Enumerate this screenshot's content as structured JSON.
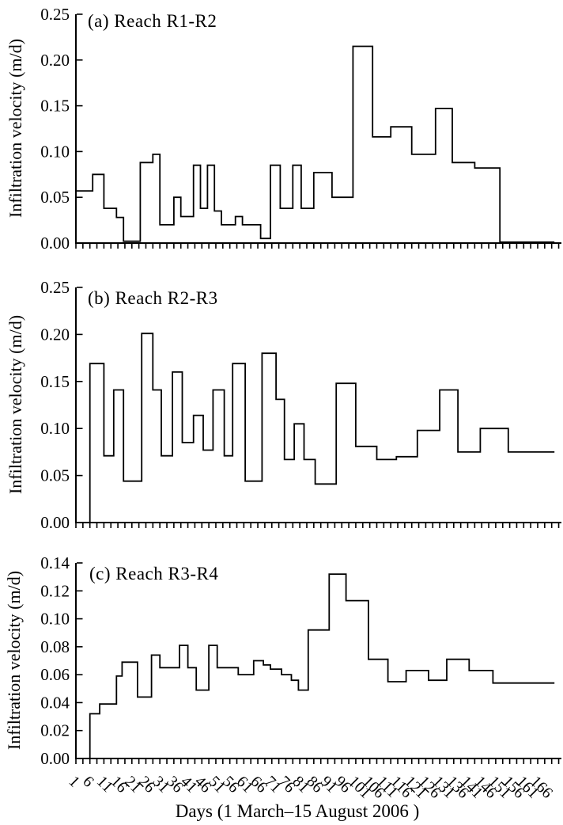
{
  "figure": {
    "background_color": "#ffffff",
    "line_color": "#000000",
    "text_color": "#000000"
  },
  "x_axis": {
    "label": "Days (1 March–15 August 2006 )",
    "tick_label_start": 1,
    "tick_label_step": 5,
    "tick_label_end": 166,
    "minor_tick_step": 2.5,
    "domain": [
      1,
      172
    ]
  },
  "chart_data": [
    {
      "type": "line",
      "line_style": "step",
      "grid": false,
      "legend": "none",
      "title": "(a) Reach R1-R2",
      "ylabel": "Infiltration velocity (m/d)",
      "ylim": [
        0,
        0.25
      ],
      "ytick_step": 0.05,
      "start_value": 0,
      "steps": [
        [
          1,
          0.057
        ],
        [
          7,
          0.075
        ],
        [
          11,
          0.038
        ],
        [
          15.5,
          0.028
        ],
        [
          18,
          0.002
        ],
        [
          24,
          0.088
        ],
        [
          28.5,
          0.097
        ],
        [
          31,
          0.02
        ],
        [
          36,
          0.05
        ],
        [
          38.5,
          0.029
        ],
        [
          43,
          0.085
        ],
        [
          45.5,
          0.038
        ],
        [
          48,
          0.085
        ],
        [
          50.5,
          0.035
        ],
        [
          53,
          0.02
        ],
        [
          58,
          0.029
        ],
        [
          60.5,
          0.02
        ],
        [
          67,
          0.005
        ],
        [
          70.5,
          0.085
        ],
        [
          74,
          0.038
        ],
        [
          78.5,
          0.085
        ],
        [
          81.5,
          0.038
        ],
        [
          86,
          0.077
        ],
        [
          92.5,
          0.05
        ],
        [
          100,
          0.215
        ],
        [
          107,
          0.116
        ],
        [
          113.5,
          0.127
        ],
        [
          121,
          0.097
        ],
        [
          129.5,
          0.147
        ],
        [
          135.5,
          0.088
        ],
        [
          143.5,
          0.082
        ],
        [
          152.5,
          0.001
        ]
      ]
    },
    {
      "type": "line",
      "line_style": "step",
      "grid": false,
      "legend": "none",
      "title": "(b) Reach R2-R3",
      "ylabel": "Infiltration velocity (m/d)",
      "ylim": [
        0,
        0.25
      ],
      "ytick_step": 0.05,
      "start_value": 0,
      "steps": [
        [
          6,
          0.169
        ],
        [
          11,
          0.071
        ],
        [
          14.5,
          0.141
        ],
        [
          18,
          0.044
        ],
        [
          24.5,
          0.201
        ],
        [
          28.5,
          0.141
        ],
        [
          31.5,
          0.071
        ],
        [
          35.5,
          0.16
        ],
        [
          39,
          0.085
        ],
        [
          43,
          0.114
        ],
        [
          46.5,
          0.077
        ],
        [
          50,
          0.141
        ],
        [
          54,
          0.071
        ],
        [
          57,
          0.169
        ],
        [
          61.5,
          0.044
        ],
        [
          67.5,
          0.18
        ],
        [
          72.5,
          0.131
        ],
        [
          75.5,
          0.067
        ],
        [
          79,
          0.105
        ],
        [
          82.5,
          0.067
        ],
        [
          86.5,
          0.041
        ],
        [
          94,
          0.148
        ],
        [
          101,
          0.081
        ],
        [
          108.5,
          0.067
        ],
        [
          115.5,
          0.07
        ],
        [
          123,
          0.098
        ],
        [
          131,
          0.141
        ],
        [
          137.5,
          0.075
        ],
        [
          145.5,
          0.1
        ],
        [
          155.5,
          0.075
        ]
      ]
    },
    {
      "type": "line",
      "line_style": "step",
      "grid": false,
      "legend": "none",
      "title": "(c) Reach R3-R4",
      "ylabel": "Infiltration velocity (m/d)",
      "ylim": [
        0,
        0.14
      ],
      "ytick_step": 0.02,
      "start_value": 0,
      "steps": [
        [
          6,
          0.032
        ],
        [
          9.5,
          0.039
        ],
        [
          15.5,
          0.059
        ],
        [
          17.5,
          0.069
        ],
        [
          23,
          0.044
        ],
        [
          28,
          0.074
        ],
        [
          31,
          0.065
        ],
        [
          38,
          0.081
        ],
        [
          41,
          0.065
        ],
        [
          44,
          0.049
        ],
        [
          48.5,
          0.081
        ],
        [
          51.5,
          0.065
        ],
        [
          59,
          0.06
        ],
        [
          64.5,
          0.07
        ],
        [
          68,
          0.067
        ],
        [
          70.5,
          0.064
        ],
        [
          74.5,
          0.06
        ],
        [
          78,
          0.056
        ],
        [
          80.5,
          0.049
        ],
        [
          84,
          0.092
        ],
        [
          91.5,
          0.132
        ],
        [
          97.5,
          0.113
        ],
        [
          105.5,
          0.071
        ],
        [
          112.5,
          0.055
        ],
        [
          119,
          0.063
        ],
        [
          127,
          0.056
        ],
        [
          133.5,
          0.071
        ],
        [
          141.5,
          0.063
        ],
        [
          150,
          0.054
        ]
      ]
    }
  ]
}
